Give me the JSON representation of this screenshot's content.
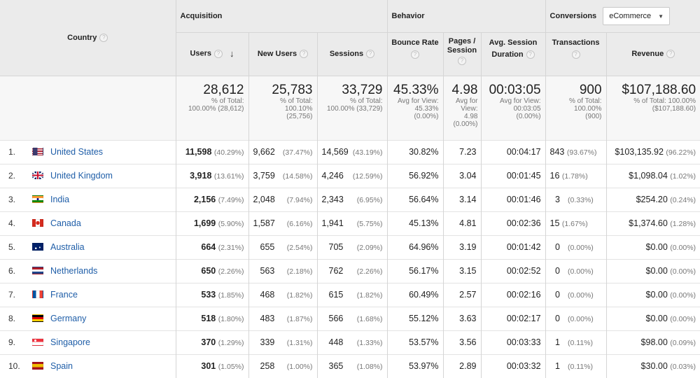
{
  "header": {
    "country": "Country",
    "acquisition": "Acquisition",
    "behavior": "Behavior",
    "conversions": "Conversions",
    "conversions_select": "eCommerce",
    "users": "Users",
    "new_users": "New Users",
    "sessions": "Sessions",
    "bounce_rate": "Bounce Rate",
    "pages_l1": "Pages /",
    "pages_l2": "Session",
    "avg_l1": "Avg. Session",
    "avg_l2": "Duration",
    "transactions": "Transactions",
    "revenue": "Revenue",
    "help": "?"
  },
  "totals": {
    "users": {
      "value": "28,612",
      "l1": "% of Total:",
      "l2": "100.00% (28,612)",
      "l3": "",
      "l4": ""
    },
    "new_users": {
      "value": "25,783",
      "l1": "% of Total:",
      "l2": "100.10%",
      "l3": "(25,756)",
      "l4": ""
    },
    "sessions": {
      "value": "33,729",
      "l1": "% of Total:",
      "l2": "100.00% (33,729)",
      "l3": "",
      "l4": ""
    },
    "bounce_rate": {
      "value": "45.33%",
      "l1": "Avg for View:",
      "l2": "45.33%",
      "l3": "(0.00%)",
      "l4": ""
    },
    "pages": {
      "value": "4.98",
      "l1": "Avg for",
      "l2": "View:",
      "l3": "4.98",
      "l4": "(0.00%)"
    },
    "avg_duration": {
      "value": "00:03:05",
      "l1": "Avg for View:",
      "l2": "00:03:05",
      "l3": "(0.00%)",
      "l4": ""
    },
    "transactions": {
      "value": "900",
      "l1": "% of Total:",
      "l2": "100.00%",
      "l3": "(900)",
      "l4": ""
    },
    "revenue": {
      "value": "$107,188.60",
      "l1": "% of Total: 100.00%",
      "l2": "($107,188.60)",
      "l3": "",
      "l4": ""
    }
  },
  "rows": [
    {
      "idx": "1.",
      "flag": "us-flag-icon",
      "country": "United States",
      "users": "11,598",
      "users_pct": "(40.29%)",
      "new_users": "9,662",
      "new_users_pct": "(37.47%)",
      "sessions": "14,569",
      "sessions_pct": "(43.19%)",
      "bounce": "30.82%",
      "pages": "7.23",
      "duration": "00:04:17",
      "tx": "843",
      "tx_pct": "(93.67%)",
      "rev": "$103,135.92",
      "rev_pct": "(96.22%)"
    },
    {
      "idx": "2.",
      "flag": "uk-flag-icon",
      "country": "United Kingdom",
      "users": "3,918",
      "users_pct": "(13.61%)",
      "new_users": "3,759",
      "new_users_pct": "(14.58%)",
      "sessions": "4,246",
      "sessions_pct": "(12.59%)",
      "bounce": "56.92%",
      "pages": "3.04",
      "duration": "00:01:45",
      "tx": "16",
      "tx_pct": "(1.78%)",
      "rev": "$1,098.04",
      "rev_pct": "(1.02%)"
    },
    {
      "idx": "3.",
      "flag": "india-flag-icon",
      "country": "India",
      "users": "2,156",
      "users_pct": "(7.49%)",
      "new_users": "2,048",
      "new_users_pct": "(7.94%)",
      "sessions": "2,343",
      "sessions_pct": "(6.95%)",
      "bounce": "56.64%",
      "pages": "3.14",
      "duration": "00:01:46",
      "tx": "3",
      "tx_pct": "(0.33%)",
      "rev": "$254.20",
      "rev_pct": "(0.24%)"
    },
    {
      "idx": "4.",
      "flag": "canada-flag-icon",
      "country": "Canada",
      "users": "1,699",
      "users_pct": "(5.90%)",
      "new_users": "1,587",
      "new_users_pct": "(6.16%)",
      "sessions": "1,941",
      "sessions_pct": "(5.75%)",
      "bounce": "45.13%",
      "pages": "4.81",
      "duration": "00:02:36",
      "tx": "15",
      "tx_pct": "(1.67%)",
      "rev": "$1,374.60",
      "rev_pct": "(1.28%)"
    },
    {
      "idx": "5.",
      "flag": "australia-flag-icon",
      "country": "Australia",
      "users": "664",
      "users_pct": "(2.31%)",
      "new_users": "655",
      "new_users_pct": "(2.54%)",
      "sessions": "705",
      "sessions_pct": "(2.09%)",
      "bounce": "64.96%",
      "pages": "3.19",
      "duration": "00:01:42",
      "tx": "0",
      "tx_pct": "(0.00%)",
      "rev": "$0.00",
      "rev_pct": "(0.00%)"
    },
    {
      "idx": "6.",
      "flag": "netherlands-flag-icon",
      "country": "Netherlands",
      "users": "650",
      "users_pct": "(2.26%)",
      "new_users": "563",
      "new_users_pct": "(2.18%)",
      "sessions": "762",
      "sessions_pct": "(2.26%)",
      "bounce": "56.17%",
      "pages": "3.15",
      "duration": "00:02:52",
      "tx": "0",
      "tx_pct": "(0.00%)",
      "rev": "$0.00",
      "rev_pct": "(0.00%)"
    },
    {
      "idx": "7.",
      "flag": "france-flag-icon",
      "country": "France",
      "users": "533",
      "users_pct": "(1.85%)",
      "new_users": "468",
      "new_users_pct": "(1.82%)",
      "sessions": "615",
      "sessions_pct": "(1.82%)",
      "bounce": "60.49%",
      "pages": "2.57",
      "duration": "00:02:16",
      "tx": "0",
      "tx_pct": "(0.00%)",
      "rev": "$0.00",
      "rev_pct": "(0.00%)"
    },
    {
      "idx": "8.",
      "flag": "germany-flag-icon",
      "country": "Germany",
      "users": "518",
      "users_pct": "(1.80%)",
      "new_users": "483",
      "new_users_pct": "(1.87%)",
      "sessions": "566",
      "sessions_pct": "(1.68%)",
      "bounce": "55.12%",
      "pages": "3.63",
      "duration": "00:02:17",
      "tx": "0",
      "tx_pct": "(0.00%)",
      "rev": "$0.00",
      "rev_pct": "(0.00%)"
    },
    {
      "idx": "9.",
      "flag": "singapore-flag-icon",
      "country": "Singapore",
      "users": "370",
      "users_pct": "(1.29%)",
      "new_users": "339",
      "new_users_pct": "(1.31%)",
      "sessions": "448",
      "sessions_pct": "(1.33%)",
      "bounce": "53.57%",
      "pages": "3.56",
      "duration": "00:03:33",
      "tx": "1",
      "tx_pct": "(0.11%)",
      "rev": "$98.00",
      "rev_pct": "(0.09%)"
    },
    {
      "idx": "10.",
      "flag": "spain-flag-icon",
      "country": "Spain",
      "users": "301",
      "users_pct": "(1.05%)",
      "new_users": "258",
      "new_users_pct": "(1.00%)",
      "sessions": "365",
      "sessions_pct": "(1.08%)",
      "bounce": "53.97%",
      "pages": "2.89",
      "duration": "00:03:32",
      "tx": "1",
      "tx_pct": "(0.11%)",
      "rev": "$30.00",
      "rev_pct": "(0.03%)"
    }
  ]
}
